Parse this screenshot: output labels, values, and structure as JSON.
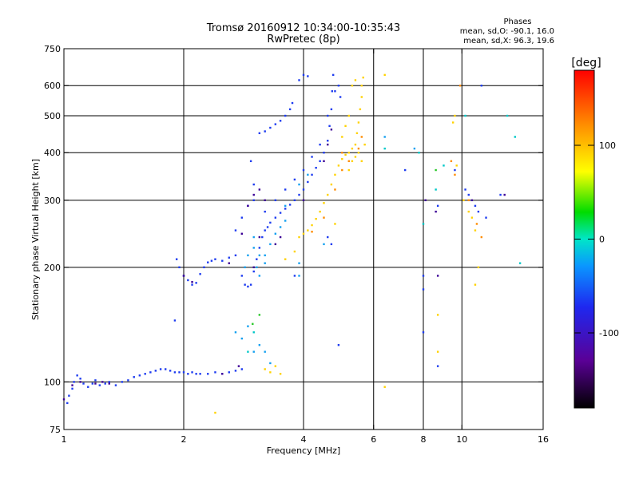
{
  "chart_data": {
    "type": "scatter",
    "title": "Tromsø 20160912 10:34:00-10:35:43",
    "subtitle": "RwPretec (8p)",
    "xlabel": "Frequency [MHz]",
    "ylabel": "Stationary phase Virtual Height [km]",
    "x_scale": "log",
    "y_scale": "log",
    "xlim": [
      1,
      16
    ],
    "ylim": [
      75,
      750
    ],
    "x_ticks": [
      1,
      2,
      4,
      6,
      8,
      10,
      16
    ],
    "y_ticks": [
      75,
      100,
      200,
      300,
      400,
      500,
      600,
      750
    ],
    "x_grid": [
      2,
      4,
      6,
      8,
      10
    ],
    "y_grid": [
      100,
      200,
      300,
      400,
      500,
      600
    ],
    "grid": true,
    "stats_title": "Phases",
    "stats_lines": [
      "mean, sd,O: -90.1, 16.0",
      "mean, sd,X:  96.3, 19.6"
    ],
    "colorbar": {
      "unit": "[deg]",
      "ticks": [
        100,
        0,
        -100
      ],
      "range": [
        -180,
        180
      ]
    },
    "series": [
      {
        "color": "#1e3cf0",
        "phase": -100,
        "points": [
          [
            1.02,
            88
          ],
          [
            1.03,
            92
          ],
          [
            1.05,
            96
          ],
          [
            1.06,
            100
          ],
          [
            1.08,
            104
          ],
          [
            1.1,
            102
          ],
          [
            1.12,
            99
          ],
          [
            1.15,
            97
          ],
          [
            1.18,
            99
          ],
          [
            1.2,
            101
          ],
          [
            1.23,
            98
          ],
          [
            1.27,
            99
          ],
          [
            1.3,
            100
          ],
          [
            1.35,
            98
          ],
          [
            1.4,
            100
          ],
          [
            1.45,
            101
          ],
          [
            1.5,
            103
          ],
          [
            1.55,
            104
          ],
          [
            1.6,
            105
          ],
          [
            1.65,
            106
          ],
          [
            1.7,
            107
          ],
          [
            1.75,
            108
          ],
          [
            1.8,
            108
          ],
          [
            1.85,
            107
          ],
          [
            1.9,
            106
          ],
          [
            1.95,
            106
          ],
          [
            2.0,
            106
          ],
          [
            2.05,
            105
          ],
          [
            2.1,
            106
          ],
          [
            2.15,
            105
          ],
          [
            2.2,
            105
          ],
          [
            2.3,
            105
          ],
          [
            2.4,
            106
          ],
          [
            2.5,
            105
          ],
          [
            2.6,
            106
          ],
          [
            2.7,
            107
          ],
          [
            2.8,
            108
          ],
          [
            1.9,
            145
          ],
          [
            1.92,
            210
          ],
          [
            1.95,
            200
          ],
          [
            2.0,
            190
          ],
          [
            2.05,
            185
          ],
          [
            2.1,
            180
          ],
          [
            2.15,
            182
          ],
          [
            2.2,
            192
          ],
          [
            2.25,
            200
          ],
          [
            2.3,
            206
          ],
          [
            2.35,
            208
          ],
          [
            2.4,
            210
          ],
          [
            2.5,
            208
          ],
          [
            2.6,
            212
          ],
          [
            2.7,
            215
          ],
          [
            2.8,
            190
          ],
          [
            2.85,
            180
          ],
          [
            2.9,
            178
          ],
          [
            2.95,
            180
          ],
          [
            3.0,
            195
          ],
          [
            3.05,
            210
          ],
          [
            3.1,
            225
          ],
          [
            3.15,
            240
          ],
          [
            3.2,
            250
          ],
          [
            3.25,
            255
          ],
          [
            3.3,
            262
          ],
          [
            3.4,
            270
          ],
          [
            3.5,
            278
          ],
          [
            3.6,
            285
          ],
          [
            3.7,
            292
          ],
          [
            3.8,
            300
          ],
          [
            3.9,
            310
          ],
          [
            4.0,
            320
          ],
          [
            4.1,
            335
          ],
          [
            4.2,
            350
          ],
          [
            4.3,
            365
          ],
          [
            4.4,
            380
          ],
          [
            4.5,
            400
          ],
          [
            4.6,
            430
          ],
          [
            4.65,
            470
          ],
          [
            4.7,
            520
          ],
          [
            4.72,
            580
          ],
          [
            4.75,
            640
          ],
          [
            3.1,
            450
          ],
          [
            3.2,
            455
          ],
          [
            3.3,
            465
          ],
          [
            3.4,
            475
          ],
          [
            3.5,
            485
          ],
          [
            3.6,
            500
          ],
          [
            3.7,
            520
          ],
          [
            3.75,
            540
          ],
          [
            3.9,
            620
          ],
          [
            4.0,
            640
          ],
          [
            4.1,
            635
          ],
          [
            2.7,
            250
          ],
          [
            2.8,
            270
          ],
          [
            2.9,
            290
          ],
          [
            3.0,
            300
          ],
          [
            3.0,
            330
          ],
          [
            2.95,
            380
          ],
          [
            3.2,
            280
          ],
          [
            3.4,
            300
          ],
          [
            3.6,
            320
          ],
          [
            3.8,
            340
          ],
          [
            4.0,
            360
          ],
          [
            4.2,
            390
          ],
          [
            4.4,
            420
          ],
          [
            4.6,
            500
          ],
          [
            4.8,
            580
          ],
          [
            4.9,
            600
          ],
          [
            4.95,
            560
          ],
          [
            4.6,
            240
          ],
          [
            4.7,
            230
          ],
          [
            3.8,
            190
          ],
          [
            4.9,
            125
          ],
          [
            7.2,
            360
          ],
          [
            8.0,
            175
          ],
          [
            8.0,
            190
          ],
          [
            8.0,
            135
          ],
          [
            8.7,
            290
          ],
          [
            8.7,
            110
          ],
          [
            9.6,
            360
          ],
          [
            10.2,
            320
          ],
          [
            10.4,
            310
          ],
          [
            10.8,
            290
          ],
          [
            11.0,
            280
          ],
          [
            11.5,
            270
          ],
          [
            12.5,
            310
          ],
          [
            11.2,
            600
          ]
        ]
      },
      {
        "color": "#14a0f0",
        "phase": -50,
        "points": [
          [
            2.85,
            200
          ],
          [
            2.9,
            215
          ],
          [
            3.0,
            240
          ],
          [
            3.05,
            200
          ],
          [
            3.1,
            215
          ],
          [
            3.2,
            215
          ],
          [
            3.3,
            230
          ],
          [
            3.4,
            245
          ],
          [
            3.5,
            255
          ],
          [
            3.6,
            265
          ],
          [
            2.7,
            135
          ],
          [
            2.8,
            130
          ],
          [
            2.9,
            140
          ],
          [
            3.0,
            120
          ],
          [
            3.1,
            125
          ],
          [
            3.2,
            120
          ],
          [
            3.3,
            112
          ],
          [
            3.0,
            225
          ],
          [
            3.1,
            190
          ],
          [
            3.2,
            205
          ],
          [
            3.6,
            290
          ],
          [
            3.9,
            330
          ],
          [
            4.1,
            350
          ],
          [
            3.9,
            205
          ],
          [
            4.5,
            230
          ],
          [
            3.9,
            190
          ],
          [
            6.4,
            440
          ],
          [
            7.6,
            410
          ]
        ]
      },
      {
        "color": "#ffd200",
        "phase": 100,
        "points": [
          [
            3.9,
            240
          ],
          [
            4.0,
            245
          ],
          [
            4.1,
            250
          ],
          [
            4.2,
            258
          ],
          [
            4.3,
            268
          ],
          [
            4.4,
            280
          ],
          [
            4.5,
            295
          ],
          [
            4.6,
            310
          ],
          [
            4.7,
            330
          ],
          [
            4.8,
            350
          ],
          [
            4.9,
            370
          ],
          [
            5.0,
            385
          ],
          [
            5.1,
            395
          ],
          [
            5.2,
            400
          ],
          [
            5.3,
            410
          ],
          [
            5.4,
            420
          ],
          [
            5.45,
            450
          ],
          [
            5.5,
            480
          ],
          [
            5.55,
            520
          ],
          [
            5.6,
            560
          ],
          [
            5.6,
            600
          ],
          [
            5.65,
            630
          ],
          [
            5.3,
            600
          ],
          [
            5.4,
            620
          ],
          [
            5.0,
            440
          ],
          [
            5.1,
            470
          ],
          [
            5.2,
            500
          ],
          [
            5.2,
            360
          ],
          [
            5.3,
            380
          ],
          [
            5.4,
            390
          ],
          [
            5.5,
            400
          ],
          [
            5.6,
            380
          ],
          [
            5.7,
            420
          ],
          [
            3.8,
            220
          ],
          [
            3.6,
            210
          ],
          [
            3.2,
            108
          ],
          [
            3.3,
            106
          ],
          [
            3.4,
            110
          ],
          [
            3.5,
            105
          ],
          [
            4.8,
            260
          ],
          [
            6.4,
            640
          ],
          [
            6.4,
            97
          ],
          [
            8.7,
            150
          ],
          [
            8.7,
            120
          ],
          [
            9.5,
            480
          ],
          [
            9.6,
            500
          ],
          [
            9.7,
            370
          ],
          [
            10.1,
            300
          ],
          [
            10.4,
            280
          ],
          [
            10.6,
            270
          ],
          [
            10.8,
            250
          ],
          [
            11.0,
            200
          ],
          [
            10.8,
            180
          ],
          [
            2.4,
            83
          ]
        ]
      },
      {
        "color": "#ff8c00",
        "phase": 130,
        "points": [
          [
            4.2,
            248
          ],
          [
            4.5,
            270
          ],
          [
            4.8,
            320
          ],
          [
            5.0,
            360
          ],
          [
            5.2,
            380
          ],
          [
            5.5,
            410
          ],
          [
            5.6,
            440
          ],
          [
            5.0,
            400
          ],
          [
            9.4,
            380
          ],
          [
            9.6,
            350
          ],
          [
            10.4,
            300
          ],
          [
            10.9,
            260
          ],
          [
            11.2,
            240
          ],
          [
            9.9,
            600
          ]
        ]
      },
      {
        "color": "#3c0096",
        "phase": -140,
        "points": [
          [
            2.0,
            190
          ],
          [
            2.1,
            183
          ],
          [
            2.8,
            245
          ],
          [
            2.9,
            290
          ],
          [
            3.0,
            310
          ],
          [
            3.1,
            320
          ],
          [
            3.2,
            300
          ],
          [
            3.0,
            200
          ],
          [
            3.1,
            240
          ],
          [
            2.6,
            205
          ],
          [
            3.5,
            240
          ],
          [
            3.4,
            230
          ],
          [
            4.0,
            300
          ],
          [
            4.5,
            380
          ],
          [
            4.6,
            420
          ],
          [
            4.7,
            460
          ],
          [
            8.1,
            300
          ],
          [
            8.6,
            280
          ],
          [
            8.7,
            190
          ],
          [
            10.6,
            300
          ],
          [
            12.8,
            310
          ],
          [
            1.1,
            100
          ],
          [
            1.05,
            98
          ],
          [
            1.0,
            90
          ],
          [
            1.2,
            99
          ],
          [
            1.25,
            100
          ],
          [
            1.3,
            99
          ],
          [
            2.5,
            105
          ],
          [
            2.75,
            110
          ]
        ]
      },
      {
        "color": "#00c8c8",
        "phase": -20,
        "points": [
          [
            2.9,
            120
          ],
          [
            3.0,
            135
          ],
          [
            6.4,
            410
          ],
          [
            7.8,
            400
          ],
          [
            9.0,
            370
          ],
          [
            10.2,
            500
          ],
          [
            13.6,
            440
          ],
          [
            13.0,
            500
          ],
          [
            14.0,
            205
          ],
          [
            8.0,
            260
          ],
          [
            8.6,
            320
          ]
        ]
      },
      {
        "color": "#28c828",
        "phase": 20,
        "points": [
          [
            2.98,
            142
          ],
          [
            3.1,
            150
          ],
          [
            8.6,
            360
          ]
        ]
      }
    ]
  }
}
